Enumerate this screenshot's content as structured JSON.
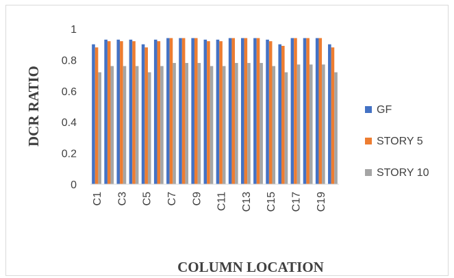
{
  "chart_data": {
    "type": "bar",
    "title": "",
    "xlabel": "COLUMN LOCATION",
    "ylabel": "DCR RATIO",
    "ylim": [
      0,
      1
    ],
    "yticks": [
      "0",
      "0.2",
      "0.4",
      "0.6",
      "0.8",
      "1"
    ],
    "categories": [
      "C1",
      "C2",
      "C3",
      "C4",
      "C5",
      "C6",
      "C7",
      "C8",
      "C9",
      "C10",
      "C11",
      "C12",
      "C13",
      "C14",
      "C15",
      "C16",
      "C17",
      "C18",
      "C19",
      "C20"
    ],
    "category_labels_shown": [
      "C1",
      "",
      "C3",
      "",
      "C5",
      "",
      "C7",
      "",
      "C9",
      "",
      "C11",
      "",
      "C13",
      "",
      "C15",
      "",
      "C17",
      "",
      "C19",
      ""
    ],
    "grid": false,
    "legend_position": "right",
    "series": [
      {
        "name": "GF",
        "color": "#4472c4",
        "values": [
          0.9,
          0.93,
          0.93,
          0.93,
          0.9,
          0.93,
          0.94,
          0.94,
          0.94,
          0.93,
          0.93,
          0.94,
          0.94,
          0.94,
          0.93,
          0.9,
          0.94,
          0.94,
          0.94,
          0.9
        ]
      },
      {
        "name": "STORY 5",
        "color": "#ed7d31",
        "values": [
          0.88,
          0.92,
          0.92,
          0.92,
          0.88,
          0.92,
          0.94,
          0.94,
          0.94,
          0.92,
          0.92,
          0.94,
          0.94,
          0.94,
          0.92,
          0.89,
          0.94,
          0.94,
          0.94,
          0.88
        ]
      },
      {
        "name": "STORY 10",
        "color": "#a5a5a5",
        "values": [
          0.72,
          0.76,
          0.76,
          0.76,
          0.72,
          0.76,
          0.78,
          0.78,
          0.78,
          0.76,
          0.76,
          0.78,
          0.78,
          0.78,
          0.76,
          0.72,
          0.77,
          0.77,
          0.77,
          0.72
        ]
      }
    ]
  }
}
